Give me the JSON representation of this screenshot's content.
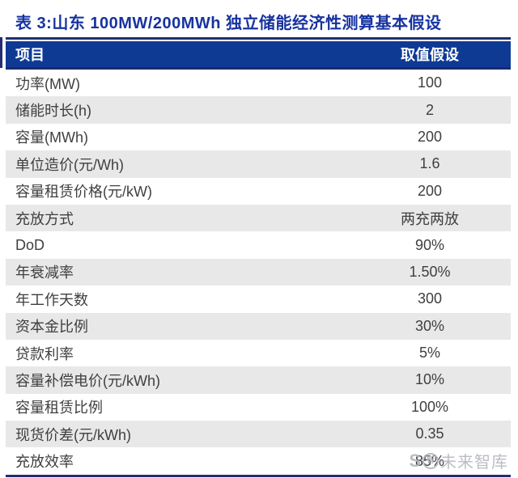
{
  "title": {
    "text": "表 3:山东 100MW/200MWh 独立储能经济性测算基本假设"
  },
  "table": {
    "header": {
      "item_label": "项目",
      "value_label": "取值假设"
    },
    "rows": [
      {
        "label": "功率(MW)",
        "value": "100"
      },
      {
        "label": "储能时长(h)",
        "value": "2"
      },
      {
        "label": "容量(MWh)",
        "value": "200"
      },
      {
        "label": "单位造价(元/Wh)",
        "value": "1.6"
      },
      {
        "label": "容量租赁价格(元/kW)",
        "value": "200"
      },
      {
        "label": "充放方式",
        "value": "两充两放"
      },
      {
        "label": "DoD",
        "value": "90%"
      },
      {
        "label": "年衰减率",
        "value": "1.50%"
      },
      {
        "label": "年工作天数",
        "value": "300"
      },
      {
        "label": "资本金比例",
        "value": "30%"
      },
      {
        "label": "贷款利率",
        "value": "5%"
      },
      {
        "label": "容量补偿电价(元/kWh)",
        "value": "10%"
      },
      {
        "label": "容量租赁比例",
        "value": "100%"
      },
      {
        "label": "现货价差(元/kWh)",
        "value": "0.35"
      },
      {
        "label": "充放效率",
        "value": "85%"
      }
    ]
  },
  "watermark": {
    "logo_knot": "S",
    "logo_circle": "智",
    "text": "未来智库"
  },
  "colors": {
    "title_text": "#1733A0",
    "rule": "#232D72",
    "header_bg": "#0E3A94",
    "header_border": "#1A2B6E",
    "header_text": "#FFFFFF",
    "row_alt_bg": "#E8E8E8",
    "row_text": "#3F3F3F",
    "watermark": "#AFB2BA"
  }
}
